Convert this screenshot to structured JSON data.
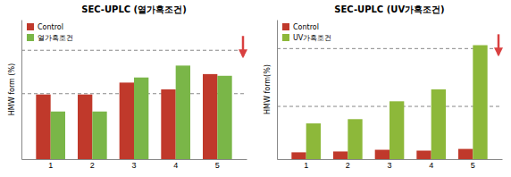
{
  "chart_data": [
    {
      "type": "bar",
      "title": "SEC-UPLC (열가혹조건)",
      "y_label": "HMW  form (%)",
      "categories": [
        "1",
        "2",
        "3",
        "4",
        "5"
      ],
      "series": [
        {
          "name": "Control",
          "color": "#c0392b",
          "values": [
            3.8,
            3.8,
            4.5,
            4.1,
            5.0
          ]
        },
        {
          "name": "열가혹조건",
          "color": "#7ab648",
          "values": [
            2.8,
            2.8,
            4.8,
            5.5,
            4.9
          ]
        }
      ],
      "ylim": [
        0,
        8.2
      ],
      "tick_labels": "x",
      "legend": "upper-left",
      "grid": false,
      "hlines": [
        3.85,
        6.4
      ],
      "annotations": [
        {
          "type": "arrow",
          "y": 6.4,
          "color": "#d94040"
        }
      ]
    },
    {
      "type": "bar",
      "title": "SEC-UPLC (UV가혹조건)",
      "y_label": "HMW form(%)",
      "categories": [
        "1",
        "2",
        "3",
        "4",
        "5"
      ],
      "series": [
        {
          "name": "Control",
          "color": "#c0392b",
          "values": [
            0.4,
            0.45,
            0.55,
            0.5,
            0.6
          ]
        },
        {
          "name": "UV가혹조건",
          "color": "#8db83a",
          "values": [
            2.1,
            2.35,
            3.4,
            4.1,
            6.7
          ]
        }
      ],
      "ylim": [
        0,
        8.2
      ],
      "tick_labels": "x",
      "legend": "upper-left",
      "grid": false,
      "hlines": [
        3.1,
        6.5
      ],
      "annotations": [
        {
          "type": "arrow",
          "y": 6.5,
          "color": "#d94040"
        }
      ]
    }
  ]
}
